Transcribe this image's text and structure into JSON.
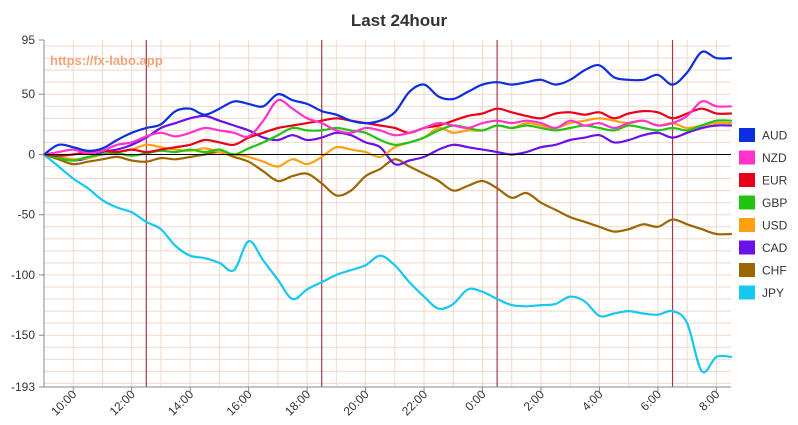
{
  "chart_data": {
    "type": "line",
    "title": "Last 24hour",
    "watermark": "https://fx-labo.app",
    "xlabel": "",
    "ylabel": "",
    "ylim": [
      -193,
      95
    ],
    "yticks": [
      95,
      50,
      0,
      -50,
      -100,
      -150,
      -193
    ],
    "ytick_labels": [
      "95",
      "50",
      "0",
      "-50",
      "-100",
      "-150",
      "-193"
    ],
    "xlim": [
      0,
      23.5
    ],
    "xticks": [
      1,
      3,
      5,
      7,
      9,
      11,
      13,
      15,
      17,
      19,
      21,
      23
    ],
    "xtick_labels": [
      "10:00",
      "12:00",
      "14:00",
      "16:00",
      "18:00",
      "20:00",
      "22:00",
      "0:00",
      "2:00",
      "4:00",
      "6:00",
      "8:00"
    ],
    "vlines": [
      3.5,
      9.5,
      15.5,
      21.5
    ],
    "grid": true,
    "legend_position": "right",
    "colors": {
      "grid": "#f1d8c8",
      "vline": "#a33a4a",
      "zero": "#000000",
      "axis": "#888888"
    },
    "x": [
      0,
      0.5,
      1,
      1.5,
      2,
      2.5,
      3,
      3.5,
      4,
      4.5,
      5,
      5.5,
      6,
      6.5,
      7,
      7.5,
      8,
      8.5,
      9,
      9.5,
      10,
      10.5,
      11,
      11.5,
      12,
      12.5,
      13,
      13.5,
      14,
      14.5,
      15,
      15.5,
      16,
      16.5,
      17,
      17.5,
      18,
      18.5,
      19,
      19.5,
      20,
      20.5,
      21,
      21.5,
      22,
      22.5,
      23,
      23.5
    ],
    "series": [
      {
        "name": "AUD",
        "color": "#0a2ee0",
        "values": [
          0,
          8,
          6,
          3,
          5,
          12,
          18,
          22,
          25,
          36,
          38,
          33,
          38,
          44,
          42,
          40,
          50,
          45,
          42,
          36,
          33,
          28,
          26,
          28,
          35,
          52,
          58,
          48,
          46,
          52,
          58,
          60,
          58,
          60,
          62,
          58,
          62,
          70,
          74,
          64,
          62,
          62,
          66,
          58,
          68,
          85,
          80,
          80
        ]
      },
      {
        "name": "NZD",
        "color": "#ff33cc",
        "values": [
          0,
          2,
          4,
          1,
          3,
          8,
          10,
          15,
          18,
          15,
          18,
          22,
          20,
          18,
          15,
          28,
          45,
          38,
          30,
          26,
          20,
          18,
          22,
          20,
          16,
          18,
          22,
          26,
          24,
          22,
          26,
          28,
          26,
          28,
          26,
          22,
          28,
          24,
          26,
          22,
          26,
          28,
          24,
          26,
          32,
          44,
          40,
          40
        ]
      },
      {
        "name": "EUR",
        "color": "#e8001a",
        "values": [
          0,
          -1,
          0,
          2,
          3,
          2,
          4,
          2,
          4,
          6,
          8,
          12,
          10,
          8,
          14,
          18,
          22,
          24,
          26,
          28,
          30,
          28,
          26,
          24,
          22,
          18,
          22,
          24,
          28,
          32,
          34,
          38,
          35,
          32,
          30,
          34,
          35,
          33,
          35,
          30,
          34,
          36,
          35,
          30,
          34,
          38,
          34,
          34
        ]
      },
      {
        "name": "GBP",
        "color": "#22c414",
        "values": [
          0,
          -3,
          -5,
          -2,
          0,
          1,
          -1,
          1,
          3,
          2,
          4,
          2,
          4,
          0,
          5,
          10,
          16,
          22,
          20,
          20,
          22,
          20,
          18,
          12,
          8,
          10,
          14,
          20,
          24,
          22,
          20,
          24,
          22,
          24,
          22,
          20,
          22,
          24,
          22,
          20,
          24,
          22,
          20,
          22,
          20,
          24,
          28,
          28
        ]
      },
      {
        "name": "USD",
        "color": "#ffa010",
        "values": [
          0,
          -2,
          -4,
          -3,
          0,
          2,
          4,
          8,
          6,
          4,
          3,
          5,
          2,
          0,
          -2,
          -6,
          -10,
          -4,
          -8,
          -2,
          6,
          4,
          2,
          -2,
          6,
          10,
          14,
          22,
          18,
          20,
          20,
          24,
          22,
          26,
          24,
          22,
          26,
          28,
          30,
          28,
          26,
          28,
          24,
          26,
          22,
          24,
          26,
          26
        ]
      },
      {
        "name": "CAD",
        "color": "#6a10e8",
        "values": [
          0,
          -2,
          -5,
          -3,
          2,
          4,
          8,
          14,
          22,
          26,
          30,
          32,
          28,
          24,
          20,
          14,
          12,
          16,
          12,
          14,
          18,
          16,
          10,
          6,
          -8,
          -5,
          -2,
          4,
          8,
          6,
          4,
          2,
          0,
          2,
          6,
          8,
          12,
          14,
          16,
          10,
          12,
          16,
          18,
          14,
          18,
          22,
          24,
          24
        ]
      },
      {
        "name": "CHF",
        "color": "#9c6600",
        "values": [
          0,
          -4,
          -8,
          -6,
          -4,
          -2,
          -5,
          -6,
          -3,
          -4,
          -2,
          0,
          2,
          -2,
          -6,
          -14,
          -22,
          -18,
          -16,
          -24,
          -34,
          -30,
          -18,
          -12,
          -4,
          -10,
          -16,
          -22,
          -30,
          -26,
          -22,
          -28,
          -36,
          -32,
          -40,
          -46,
          -52,
          -56,
          -60,
          -64,
          -62,
          -58,
          -60,
          -54,
          -58,
          -62,
          -66,
          -66
        ]
      },
      {
        "name": "JPY",
        "color": "#14c8f0",
        "values": [
          0,
          -10,
          -20,
          -28,
          -38,
          -44,
          -48,
          -56,
          -62,
          -76,
          -84,
          -86,
          -90,
          -96,
          -72,
          -88,
          -104,
          -120,
          -112,
          -106,
          -100,
          -96,
          -92,
          -84,
          -92,
          -106,
          -118,
          -128,
          -124,
          -112,
          -114,
          -120,
          -125,
          -126,
          -125,
          -124,
          -118,
          -122,
          -134,
          -132,
          -130,
          -132,
          -133,
          -130,
          -140,
          -180,
          -168,
          -168
        ]
      }
    ]
  }
}
